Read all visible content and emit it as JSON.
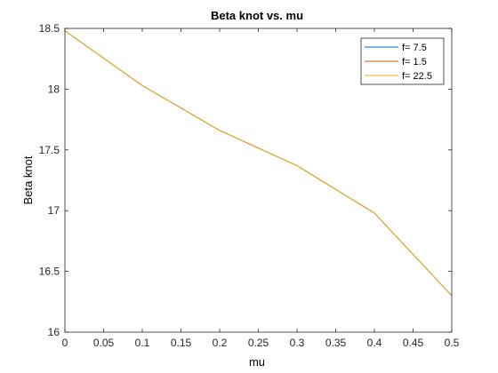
{
  "chart_data": {
    "type": "line",
    "title": "Beta knot vs. mu",
    "xlabel": "mu",
    "ylabel": "Beta knot",
    "xlim": [
      0,
      0.5
    ],
    "ylim": [
      16,
      18.5
    ],
    "xticks": [
      "0",
      "0.05",
      "0.1",
      "0.15",
      "0.2",
      "0.25",
      "0.3",
      "0.35",
      "0.4",
      "0.45",
      "0.5"
    ],
    "yticks": [
      "16",
      "16.5",
      "17",
      "17.5",
      "18",
      "18.5"
    ],
    "grid": false,
    "legend_position": "top-right",
    "x": [
      0,
      0.1,
      0.2,
      0.3,
      0.4,
      0.5
    ],
    "series": [
      {
        "name": "f= 7.5",
        "color": "#0072BD",
        "values": [
          18.48,
          18.03,
          17.66,
          17.37,
          16.98,
          16.3
        ]
      },
      {
        "name": "f= 1.5",
        "color": "#D95319",
        "values": [
          18.48,
          18.03,
          17.66,
          17.37,
          16.98,
          16.3
        ]
      },
      {
        "name": "f= 22.5",
        "color": "#EDB120",
        "values": [
          18.48,
          18.03,
          17.66,
          17.37,
          16.98,
          16.3
        ]
      }
    ]
  }
}
